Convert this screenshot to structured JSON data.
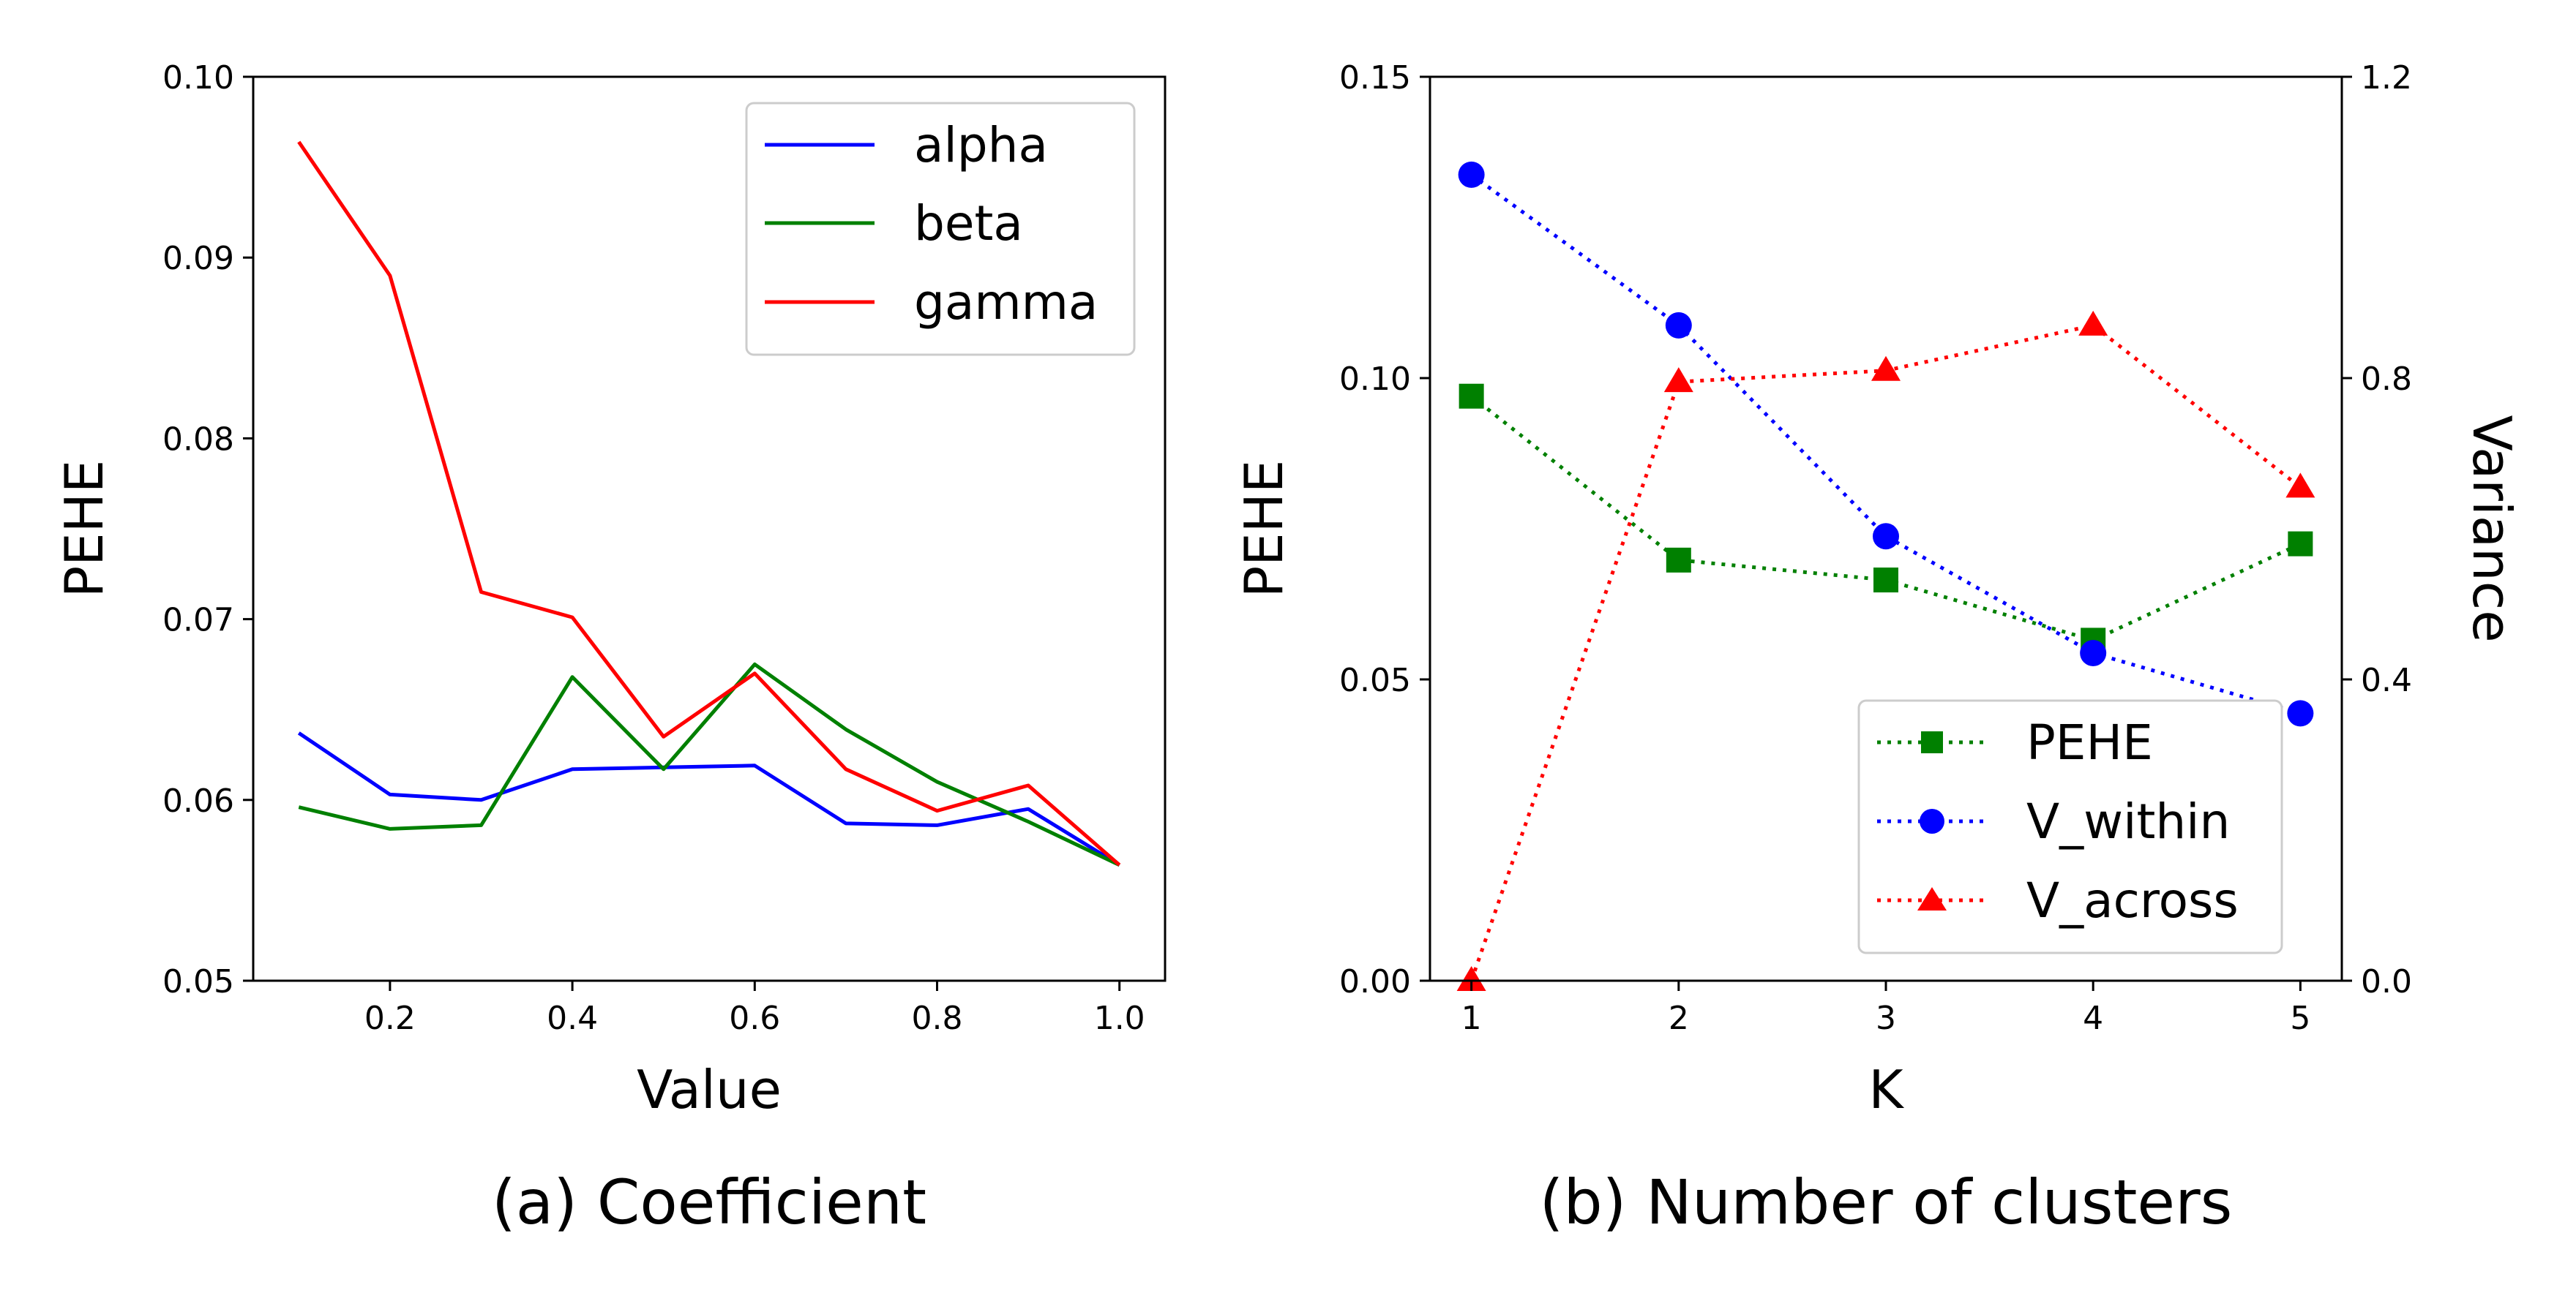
{
  "chart_data": [
    {
      "type": "line",
      "caption": "(a) Coefficient",
      "xlabel": "Value",
      "ylabel": "PEHE",
      "xlim": [
        0.05,
        1.05
      ],
      "ylim": [
        0.05,
        0.1
      ],
      "xticks": [
        0.2,
        0.4,
        0.6,
        0.8,
        1.0
      ],
      "xtick_labels": [
        "0.2",
        "0.4",
        "0.6",
        "0.8",
        "1.0"
      ],
      "yticks": [
        0.05,
        0.06,
        0.07,
        0.08,
        0.09,
        0.1
      ],
      "ytick_labels": [
        "0.05",
        "0.06",
        "0.07",
        "0.08",
        "0.09",
        "0.10"
      ],
      "legend_position": "top-right",
      "x": [
        0.1,
        0.2,
        0.3,
        0.4,
        0.5,
        0.6,
        0.7,
        0.8,
        0.9,
        1.0
      ],
      "series": [
        {
          "name": "alpha",
          "color": "#0000ff",
          "values": [
            0.0637,
            0.0603,
            0.06,
            0.0617,
            0.0618,
            0.0619,
            0.0587,
            0.0586,
            0.0595,
            0.0564
          ]
        },
        {
          "name": "beta",
          "color": "#008000",
          "values": [
            0.0596,
            0.0584,
            0.0586,
            0.0668,
            0.0617,
            0.0675,
            0.0639,
            0.061,
            0.0588,
            0.0564
          ]
        },
        {
          "name": "gamma",
          "color": "#ff0000",
          "values": [
            0.0964,
            0.089,
            0.0715,
            0.0701,
            0.0635,
            0.067,
            0.0617,
            0.0594,
            0.0608,
            0.0564
          ]
        }
      ]
    },
    {
      "type": "line",
      "caption": "(b) Number of clusters",
      "xlabel": "K",
      "ylabel": "PEHE",
      "ylabel_right": "Variance",
      "xlim": [
        0.8,
        5.2
      ],
      "ylim": [
        0.0,
        0.15
      ],
      "ylim_right": [
        0.0,
        1.2
      ],
      "xticks": [
        1,
        2,
        3,
        4,
        5
      ],
      "xtick_labels": [
        "1",
        "2",
        "3",
        "4",
        "5"
      ],
      "yticks": [
        0.0,
        0.05,
        0.1,
        0.15
      ],
      "ytick_labels": [
        "0.00",
        "0.05",
        "0.10",
        "0.15"
      ],
      "yticks_right": [
        0.0,
        0.4,
        0.8,
        1.2
      ],
      "ytick_labels_right": [
        "0.0",
        "0.4",
        "0.8",
        "1.2"
      ],
      "legend_position": "bottom-right",
      "x": [
        1,
        2,
        3,
        4,
        5
      ],
      "series": [
        {
          "name": "PEHE",
          "color": "#008000",
          "marker": "square",
          "linestyle": "dotted",
          "axis": "left",
          "values": [
            0.097,
            0.0698,
            0.0665,
            0.0565,
            0.0725
          ]
        },
        {
          "name": "V_within",
          "color": "#0000ff",
          "marker": "circle",
          "linestyle": "dotted",
          "axis": "right",
          "values": [
            1.07,
            0.87,
            0.59,
            0.435,
            0.355
          ]
        },
        {
          "name": "V_across",
          "color": "#ff0000",
          "marker": "triangle",
          "linestyle": "dotted",
          "axis": "right",
          "values": [
            0.0,
            0.795,
            0.81,
            0.87,
            0.655
          ]
        }
      ]
    }
  ]
}
